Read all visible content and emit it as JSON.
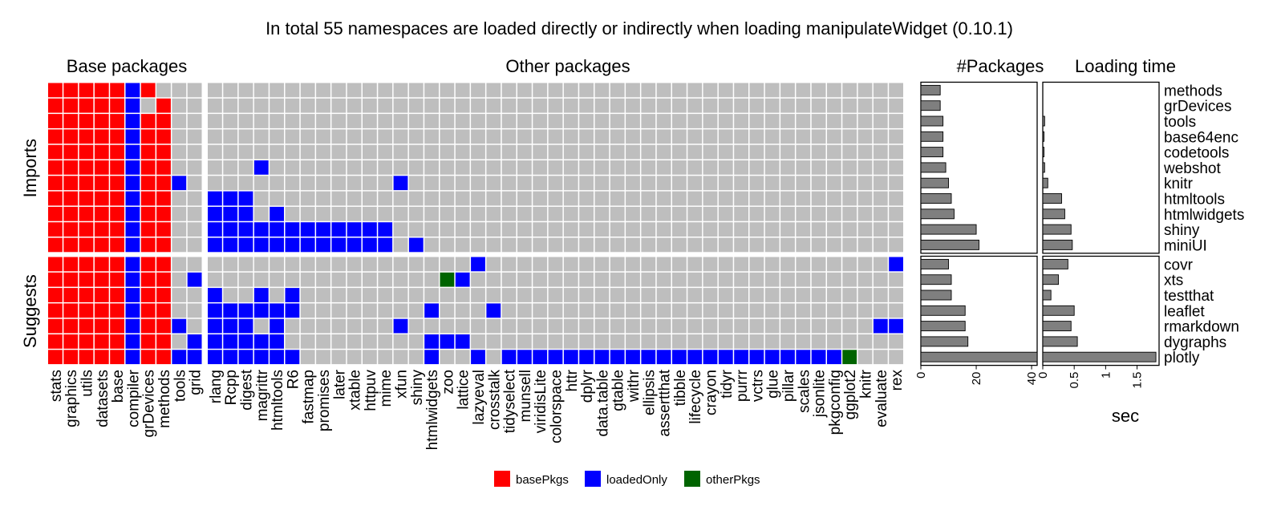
{
  "chart_data": {
    "type": "heatmap",
    "title": "In total 55 namespaces are loaded directly or indirectly when loading manipulateWidget (0.10.1)",
    "colors": {
      "basePkgs": "#ff0000",
      "loadedOnly": "#0000ff",
      "otherPkgs": "#006400",
      "empty": "#bebebe"
    },
    "legend": {
      "position": "bottom",
      "items": [
        {
          "key": "basePkgs",
          "label": "basePkgs"
        },
        {
          "key": "loadedOnly",
          "label": "loadedOnly"
        },
        {
          "key": "otherPkgs",
          "label": "otherPkgs"
        }
      ]
    },
    "facet_columns": {
      "base": "Base packages",
      "other": "Other packages",
      "packages": "#Packages",
      "loading": "Loading time"
    },
    "groups": [
      {
        "label": "Imports",
        "rows": [
          "methods",
          "grDevices",
          "tools",
          "base64enc",
          "codetools",
          "webshot",
          "knitr",
          "htmltools",
          "htmlwidgets",
          "shiny",
          "miniUI"
        ]
      },
      {
        "label": "Suggests",
        "rows": [
          "covr",
          "xts",
          "testthat",
          "leaflet",
          "rmarkdown",
          "dygraphs",
          "plotly"
        ]
      }
    ],
    "base_columns": [
      "stats",
      "graphics",
      "utils",
      "datasets",
      "base",
      "compiler",
      "grDevices",
      "methods",
      "tools",
      "grid"
    ],
    "other_columns": [
      "rlang",
      "Rcpp",
      "digest",
      "magrittr",
      "htmltools",
      "R6",
      "fastmap",
      "promises",
      "later",
      "xtable",
      "httpuv",
      "mime",
      "xfun",
      "shiny",
      "htmlwidgets",
      "zoo",
      "lattice",
      "lazyeval",
      "crosstalk",
      "tidyselect",
      "munsell",
      "viridisLite",
      "colorspace",
      "httr",
      "dplyr",
      "data.table",
      "gtable",
      "withr",
      "ellipsis",
      "assertthat",
      "tibble",
      "lifecycle",
      "crayon",
      "tidyr",
      "purrr",
      "vctrs",
      "glue",
      "pillar",
      "scales",
      "jsonlite",
      "pkgconfig",
      "ggplot2",
      "knitr",
      "evaluate",
      "rex"
    ],
    "cells": {
      "methods": {
        "base": "RRRRRBR...",
        "other": "............................................."
      },
      "grDevices": {
        "base": "RRRRRB.R..",
        "other": "............................................."
      },
      "tools": {
        "base": "RRRRRBRR..",
        "other": "............................................."
      },
      "base64enc": {
        "base": "RRRRRBRR..",
        "other": "............................................."
      },
      "codetools": {
        "base": "RRRRRBRR..",
        "other": "............................................."
      },
      "webshot": {
        "base": "RRRRRBRR..",
        "other": "...B........................................."
      },
      "knitr": {
        "base": "RRRRRBRRB.",
        "other": "............B................................"
      },
      "htmltools": {
        "base": "RRRRRBRR..",
        "other": "BBB.........................................."
      },
      "htmlwidgets": {
        "base": "RRRRRBRR..",
        "other": "BBB.B........................................"
      },
      "shiny": {
        "base": "RRRRRBRR..",
        "other": "BBBBBBBBBBBB................................."
      },
      "miniUI": {
        "base": "RRRRRBRR..",
        "other": "BBBBBBBBBBBB.B..............................."
      },
      "covr": {
        "base": "RRRRRBRR..",
        "other": ".................B..........................B"
      },
      "xts": {
        "base": "RRRRRBRR.B",
        "other": "...............GB............................"
      },
      "testthat": {
        "base": "RRRRRBRR..",
        "other": "B..B.B......................................."
      },
      "leaflet": {
        "base": "RRRRRBRR..",
        "other": "BBBBBB........B...B.........................."
      },
      "rmarkdown": {
        "base": "RRRRRBRRB.",
        "other": "BBB.B.......B..............................BB."
      },
      "dygraphs": {
        "base": "RRRRRBRR.B",
        "other": "BBBBB.........BBB............................"
      },
      "plotly": {
        "base": "RRRRRBRRBB",
        "other": "BBBBBB........B..B.BBBBBBBBBBBBBBBBBBBBBBG..."
      }
    },
    "n_packages": {
      "xlabel": "",
      "xlim": [
        0,
        42
      ],
      "ticks": [
        "0",
        "20",
        "40"
      ],
      "values": {
        "methods": 7,
        "grDevices": 7,
        "tools": 8,
        "base64enc": 8,
        "codetools": 8,
        "webshot": 9,
        "knitr": 10,
        "htmltools": 11,
        "htmlwidgets": 12,
        "shiny": 20,
        "miniUI": 21,
        "covr": 10,
        "xts": 11,
        "testthat": 11,
        "leaflet": 16,
        "rmarkdown": 16,
        "dygraphs": 17,
        "plotly": 42
      }
    },
    "loading_time": {
      "xlabel": "sec",
      "xlim": [
        0,
        1.85
      ],
      "ticks": [
        "0",
        "0.5",
        "1",
        "1.5"
      ],
      "values": {
        "methods": 0.0,
        "grDevices": 0.0,
        "tools": 0.03,
        "base64enc": 0.02,
        "codetools": 0.02,
        "webshot": 0.03,
        "knitr": 0.08,
        "htmltools": 0.3,
        "htmlwidgets": 0.35,
        "shiny": 0.45,
        "miniUI": 0.47,
        "covr": 0.4,
        "xts": 0.25,
        "testthat": 0.13,
        "leaflet": 0.5,
        "rmarkdown": 0.45,
        "dygraphs": 0.55,
        "plotly": 1.8
      }
    }
  }
}
